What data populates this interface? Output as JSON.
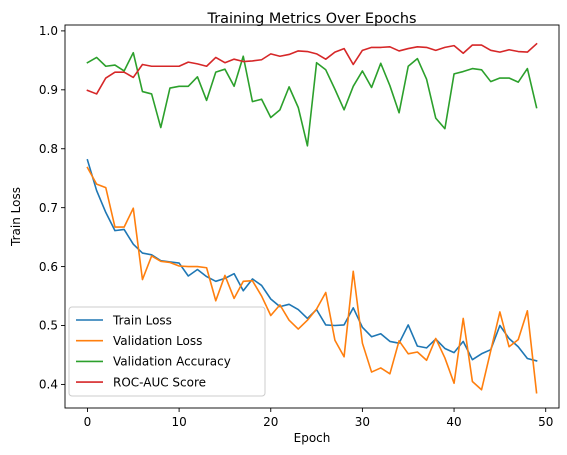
{
  "chart_data": {
    "type": "line",
    "title": "Training Metrics Over Epochs",
    "xlabel": "Epoch",
    "ylabel": "Train Loss",
    "xlim": [
      -2.45,
      51.45
    ],
    "ylim": [
      0.36,
      1.01
    ],
    "xticks": [
      0,
      10,
      20,
      30,
      40,
      50
    ],
    "yticks": [
      0.4,
      0.5,
      0.6,
      0.7,
      0.8,
      0.9,
      1.0
    ],
    "ytick_labels": [
      "0.4",
      "0.5",
      "0.6",
      "0.7",
      "0.8",
      "0.9",
      "1.0"
    ],
    "grid": false,
    "legend_position": "lower-left",
    "x": [
      0,
      1,
      2,
      3,
      4,
      5,
      6,
      7,
      8,
      9,
      10,
      11,
      12,
      13,
      14,
      15,
      16,
      17,
      18,
      19,
      20,
      21,
      22,
      23,
      24,
      25,
      26,
      27,
      28,
      29,
      30,
      31,
      32,
      33,
      34,
      35,
      36,
      37,
      38,
      39,
      40,
      41,
      42,
      43,
      44,
      45,
      46,
      47,
      48,
      49
    ],
    "series": [
      {
        "name": "Train Loss",
        "color": "#1f77b4",
        "values": [
          0.781,
          0.729,
          0.692,
          0.661,
          0.663,
          0.638,
          0.623,
          0.62,
          0.61,
          0.608,
          0.606,
          0.584,
          0.595,
          0.583,
          0.575,
          0.58,
          0.588,
          0.559,
          0.579,
          0.568,
          0.545,
          0.532,
          0.536,
          0.527,
          0.512,
          0.527,
          0.501,
          0.5,
          0.501,
          0.53,
          0.497,
          0.481,
          0.486,
          0.473,
          0.47,
          0.501,
          0.465,
          0.462,
          0.477,
          0.461,
          0.454,
          0.473,
          0.442,
          0.452,
          0.459,
          0.5,
          0.478,
          0.464,
          0.444,
          0.44
        ]
      },
      {
        "name": "Validation Loss",
        "color": "#ff7f0e",
        "values": [
          0.768,
          0.74,
          0.734,
          0.667,
          0.667,
          0.699,
          0.578,
          0.618,
          0.609,
          0.607,
          0.601,
          0.6,
          0.6,
          0.598,
          0.542,
          0.585,
          0.546,
          0.575,
          0.576,
          0.55,
          0.517,
          0.535,
          0.509,
          0.494,
          0.509,
          0.528,
          0.556,
          0.475,
          0.447,
          0.592,
          0.47,
          0.421,
          0.428,
          0.418,
          0.474,
          0.452,
          0.455,
          0.441,
          0.478,
          0.445,
          0.402,
          0.512,
          0.405,
          0.391,
          0.457,
          0.523,
          0.464,
          0.476,
          0.525,
          0.386
        ]
      },
      {
        "name": "Validation Accuracy",
        "color": "#2ca02c",
        "values": [
          0.946,
          0.955,
          0.94,
          0.942,
          0.932,
          0.963,
          0.897,
          0.893,
          0.836,
          0.903,
          0.906,
          0.906,
          0.922,
          0.882,
          0.93,
          0.935,
          0.906,
          0.957,
          0.88,
          0.884,
          0.853,
          0.866,
          0.905,
          0.87,
          0.805,
          0.946,
          0.934,
          0.901,
          0.866,
          0.906,
          0.932,
          0.904,
          0.945,
          0.907,
          0.861,
          0.94,
          0.953,
          0.918,
          0.852,
          0.834,
          0.927,
          0.931,
          0.936,
          0.934,
          0.914,
          0.92,
          0.92,
          0.913,
          0.936,
          0.87
        ]
      },
      {
        "name": "ROC-AUC Score",
        "color": "#d62728",
        "values": [
          0.899,
          0.893,
          0.92,
          0.93,
          0.93,
          0.921,
          0.943,
          0.94,
          0.94,
          0.94,
          0.94,
          0.947,
          0.944,
          0.94,
          0.955,
          0.946,
          0.952,
          0.948,
          0.949,
          0.951,
          0.961,
          0.957,
          0.96,
          0.966,
          0.965,
          0.961,
          0.952,
          0.964,
          0.97,
          0.943,
          0.967,
          0.972,
          0.972,
          0.973,
          0.966,
          0.97,
          0.973,
          0.972,
          0.967,
          0.972,
          0.975,
          0.962,
          0.976,
          0.976,
          0.967,
          0.964,
          0.968,
          0.965,
          0.964,
          0.978
        ]
      }
    ]
  }
}
